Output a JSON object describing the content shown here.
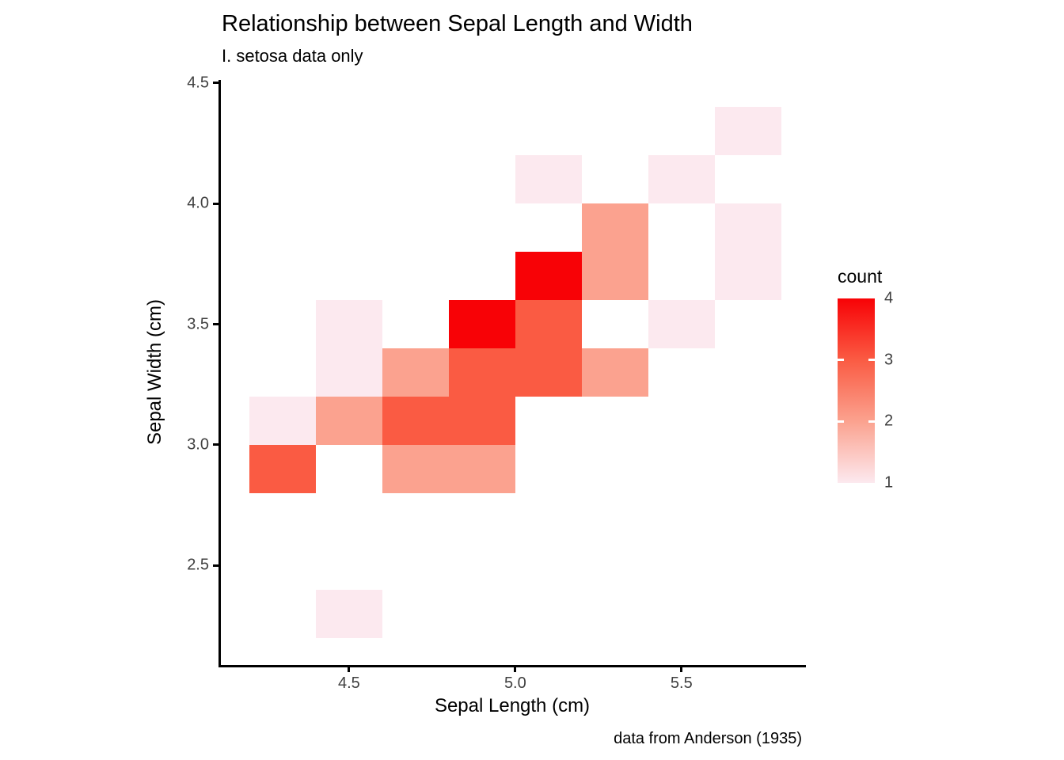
{
  "title": "Relationship between Sepal Length and Width",
  "subtitle": "I. setosa data only",
  "caption": "data from Anderson (1935)",
  "chart_data": {
    "type": "heatmap",
    "title": "Relationship between Sepal Length and Width",
    "subtitle": "I. setosa data only",
    "caption": "data from Anderson (1935)",
    "xlabel": "Sepal Length (cm)",
    "ylabel": "Sepal Width (cm)",
    "xlim": [
      4.112,
      5.872
    ],
    "ylim": [
      2.088,
      4.512
    ],
    "x_ticks": [
      4.5,
      5.0,
      5.5
    ],
    "x_tick_labels": [
      "4.5",
      "5.0",
      "5.5"
    ],
    "y_ticks": [
      2.5,
      3.0,
      3.5,
      4.0,
      4.5
    ],
    "y_tick_labels": [
      "2.5",
      "3.0",
      "3.5",
      "4.0",
      "4.5"
    ],
    "grid": false,
    "bin_width": 0.2,
    "bin_height": 0.2,
    "legend": {
      "title": "count",
      "position": "right",
      "min": 1,
      "max": 4,
      "tick_values": [
        4,
        3,
        2,
        1
      ],
      "tick_labels": [
        "4",
        "3",
        "2",
        "1"
      ]
    },
    "color_scale": {
      "1": "#FCE9EF",
      "2": "#FBA28F",
      "3": "#FA5B43",
      "4": "#F80206"
    },
    "tiles": [
      {
        "x": 4.3,
        "y": 2.9,
        "count": 3
      },
      {
        "x": 4.3,
        "y": 3.1,
        "count": 1
      },
      {
        "x": 4.5,
        "y": 2.3,
        "count": 1
      },
      {
        "x": 4.5,
        "y": 3.1,
        "count": 2
      },
      {
        "x": 4.5,
        "y": 3.3,
        "count": 1
      },
      {
        "x": 4.5,
        "y": 3.5,
        "count": 1
      },
      {
        "x": 4.7,
        "y": 2.9,
        "count": 2
      },
      {
        "x": 4.7,
        "y": 3.1,
        "count": 3
      },
      {
        "x": 4.7,
        "y": 3.3,
        "count": 2
      },
      {
        "x": 4.9,
        "y": 2.9,
        "count": 2
      },
      {
        "x": 4.9,
        "y": 3.1,
        "count": 3
      },
      {
        "x": 4.9,
        "y": 3.3,
        "count": 3
      },
      {
        "x": 4.9,
        "y": 3.5,
        "count": 4
      },
      {
        "x": 5.1,
        "y": 3.3,
        "count": 3
      },
      {
        "x": 5.1,
        "y": 3.5,
        "count": 3
      },
      {
        "x": 5.1,
        "y": 3.7,
        "count": 4
      },
      {
        "x": 5.1,
        "y": 4.1,
        "count": 1
      },
      {
        "x": 5.3,
        "y": 3.3,
        "count": 2
      },
      {
        "x": 5.3,
        "y": 3.7,
        "count": 2
      },
      {
        "x": 5.3,
        "y": 3.9,
        "count": 2
      },
      {
        "x": 5.5,
        "y": 3.5,
        "count": 1
      },
      {
        "x": 5.5,
        "y": 4.1,
        "count": 1
      },
      {
        "x": 5.7,
        "y": 3.7,
        "count": 1
      },
      {
        "x": 5.7,
        "y": 3.9,
        "count": 1
      },
      {
        "x": 5.7,
        "y": 4.3,
        "count": 1
      }
    ]
  }
}
